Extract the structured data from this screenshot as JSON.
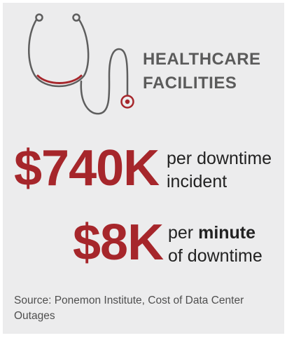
{
  "heading": {
    "line1": "HEALTHCARE",
    "line2": "FACILITIES"
  },
  "stats": [
    {
      "value": "$740K",
      "caption_line1": "per downtime",
      "caption_line2": "incident"
    },
    {
      "value": "$8K",
      "caption_line1_prefix": "per ",
      "caption_line1_emphasis": "minute",
      "caption_line2": "of downtime"
    }
  ],
  "source": "Source: Ponemon Institute, Cost of Data Center Outages",
  "icon": "stethoscope-icon",
  "colors": {
    "background": "#ececed",
    "accent": "#a6262b",
    "heading": "#5b5b5b",
    "text": "#222222",
    "icon_stroke": "#5e5e5e"
  }
}
